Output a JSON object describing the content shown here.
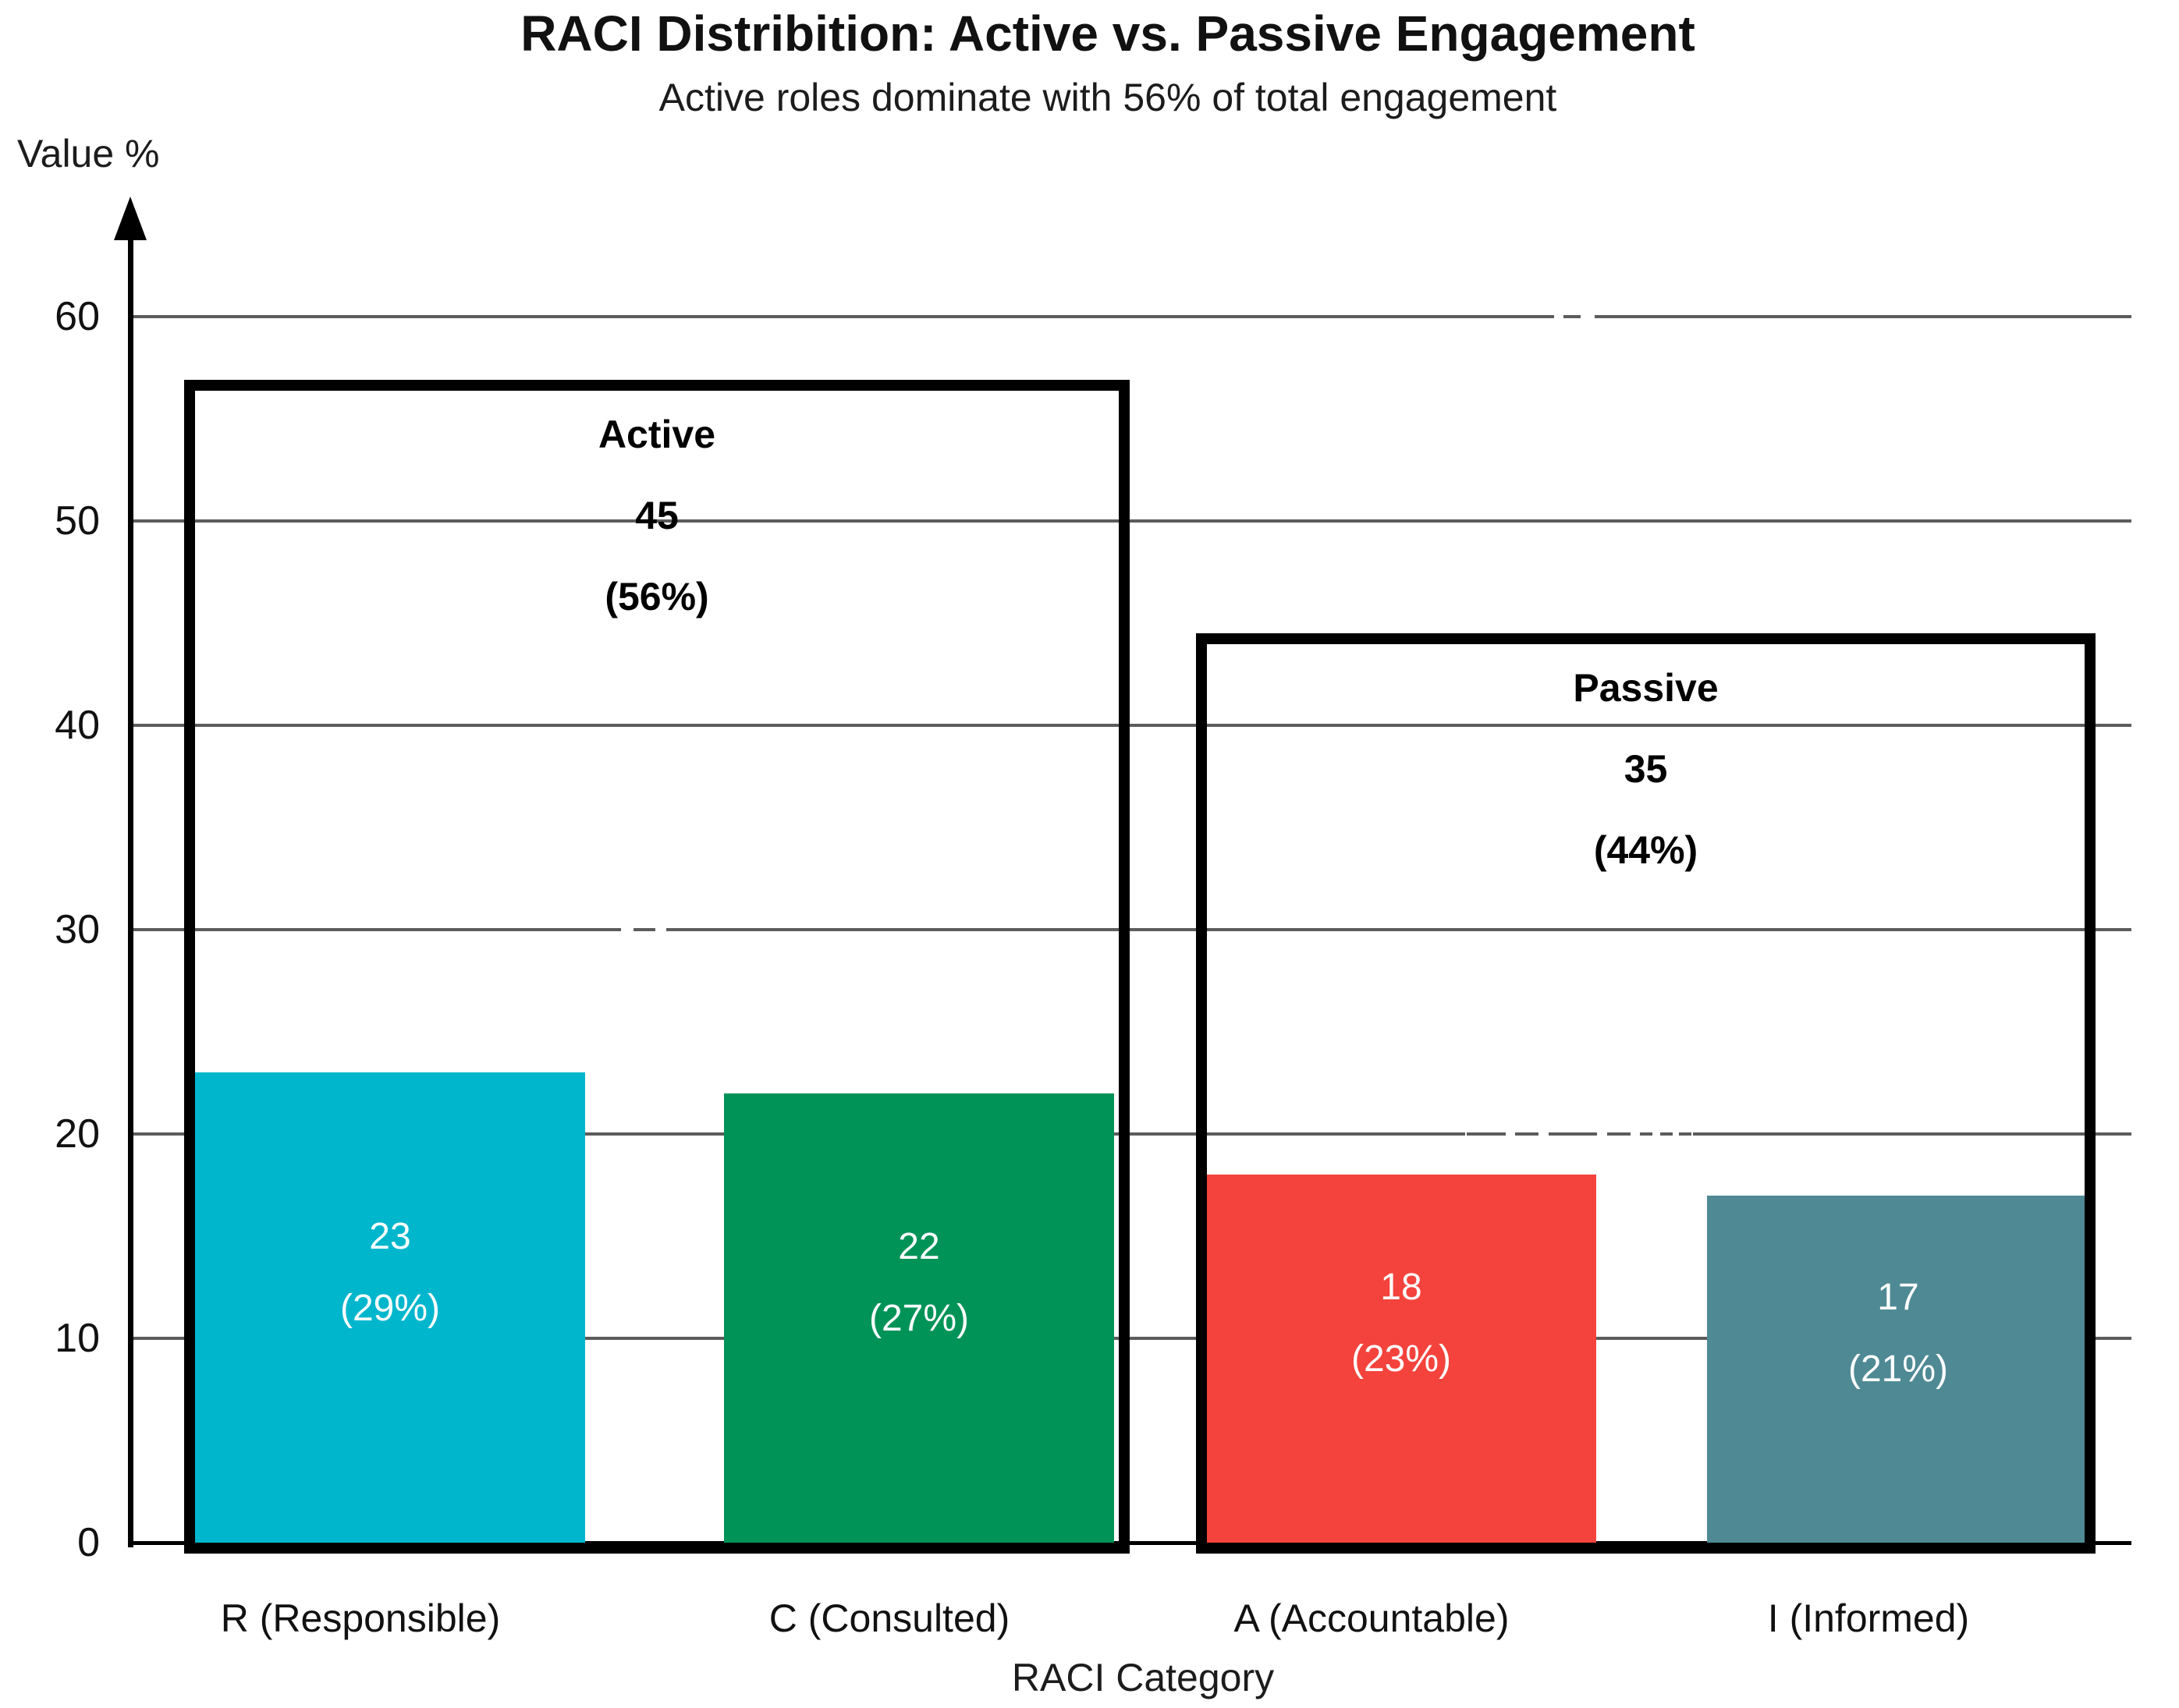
{
  "chart_data": {
    "type": "bar",
    "title": "RACI Distribition: Active vs. Passive Engagement",
    "subtitle": "Active roles dominate with 56% of total engagement",
    "xlabel": "RACI Category",
    "ylabel": "Value %",
    "ylim": [
      0,
      65
    ],
    "yticks": [
      0,
      10,
      20,
      30,
      40,
      50,
      60
    ],
    "grid": true,
    "legend": "none",
    "categories": [
      "R (Responsible)",
      "C (Consulted)",
      "A (Accountable)",
      "I (Informed)"
    ],
    "values": [
      23,
      22,
      18,
      17
    ],
    "bars": [
      {
        "category": "R (Responsible)",
        "value": 23,
        "label_lines": [
          "23",
          "(29%)"
        ],
        "color": "#00B6CD"
      },
      {
        "category": "C (Consulted)",
        "value": 22,
        "label_lines": [
          "22",
          "(27%)"
        ],
        "color": "#009358"
      },
      {
        "category": "A (Accountable)",
        "value": 18,
        "label_lines": [
          "18",
          "(23%)"
        ],
        "color": "#F4433C"
      },
      {
        "category": "I (Informed)",
        "value": 17,
        "label_lines": [
          "17",
          "(21%)"
        ],
        "color": "#4F8A94"
      }
    ],
    "groups": [
      {
        "label": "Active",
        "total": "45",
        "pct": "(56%)",
        "first_bar": 0,
        "last_bar": 1,
        "box_top_value": 56.9
      },
      {
        "label": "Passive",
        "total": "35",
        "pct": "(44%)",
        "first_bar": 2,
        "last_bar": 3,
        "box_top_value": 44.5
      }
    ],
    "colors": {
      "grid": "#5c5c5c",
      "axis": "#000000",
      "bar_label_text": "#ffffff",
      "group_box_border": "#000000"
    }
  }
}
